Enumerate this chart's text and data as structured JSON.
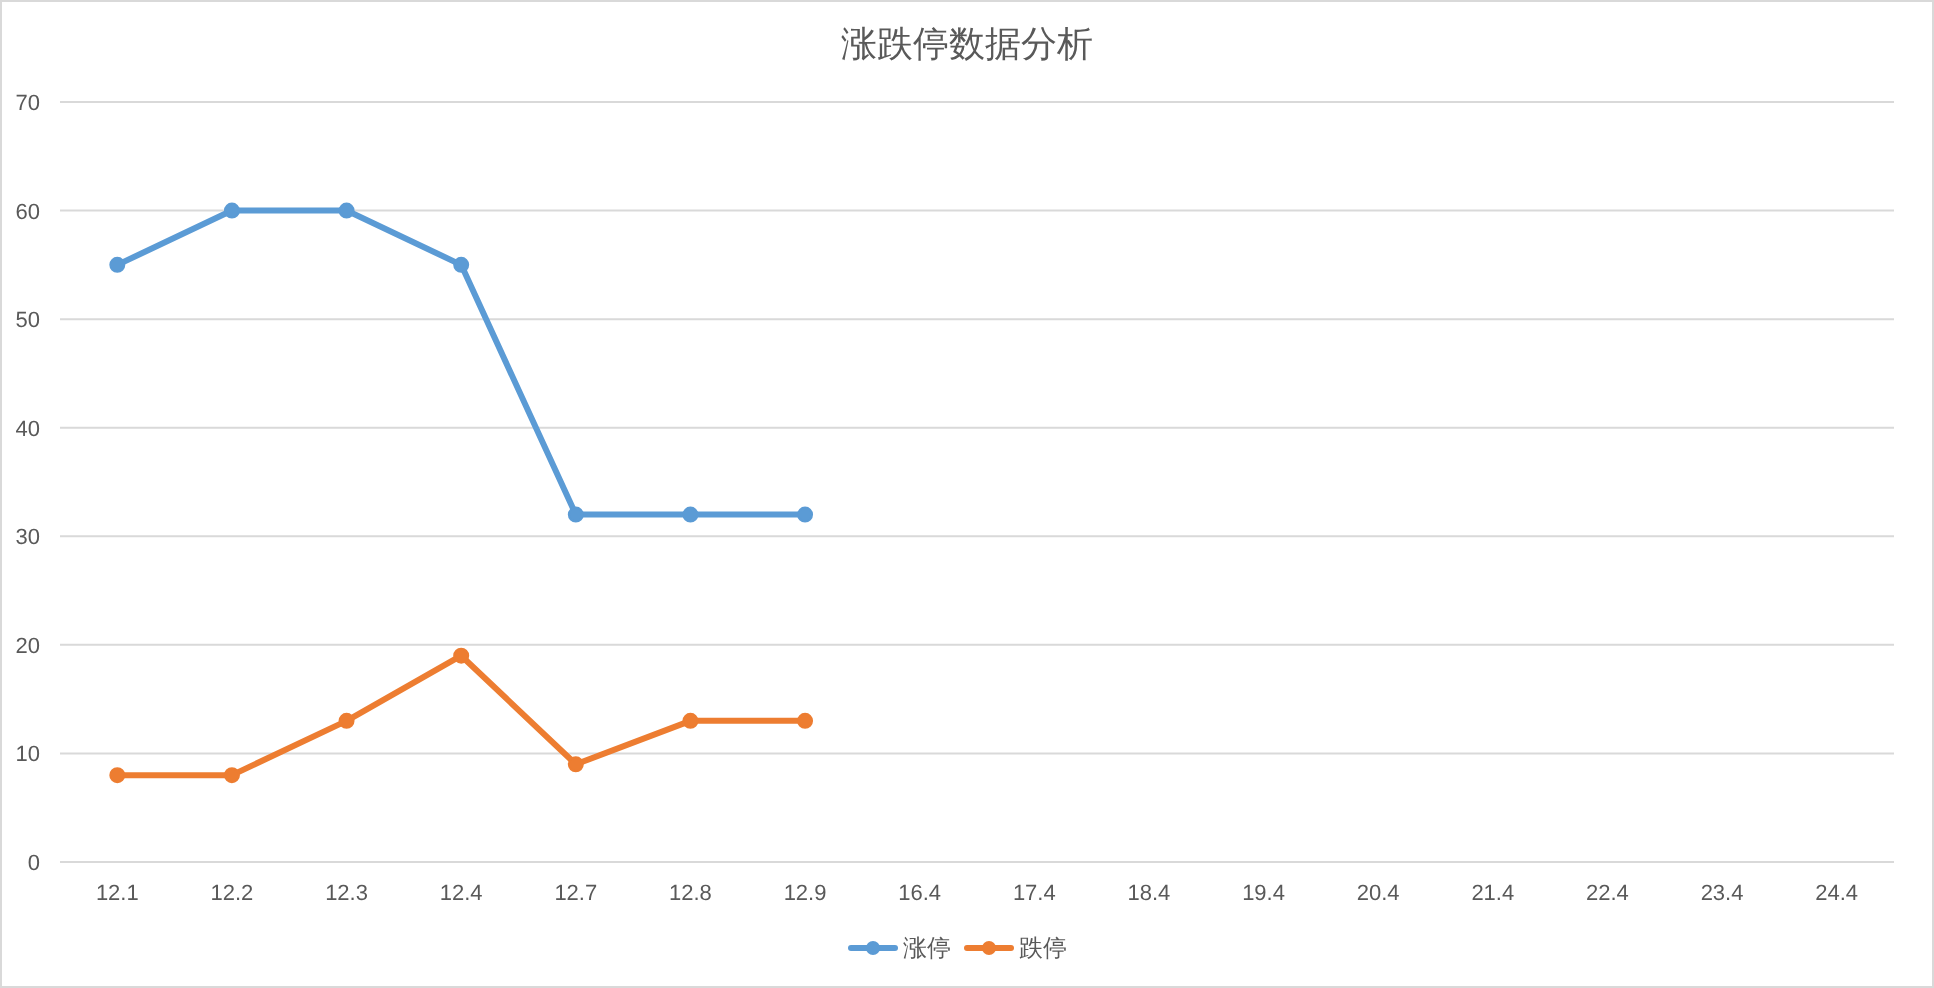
{
  "chart_data": {
    "type": "line",
    "title": "涨跌停数据分析",
    "categories": [
      "12.1",
      "12.2",
      "12.3",
      "12.4",
      "12.7",
      "12.8",
      "12.9",
      "16.4",
      "17.4",
      "18.4",
      "19.4",
      "20.4",
      "21.4",
      "22.4",
      "23.4",
      "24.4"
    ],
    "series": [
      {
        "name": "涨停",
        "color": "#5b9bd5",
        "values": [
          55,
          60,
          60,
          55,
          32,
          32,
          32,
          null,
          null,
          null,
          null,
          null,
          null,
          null,
          null,
          null
        ]
      },
      {
        "name": "跌停",
        "color": "#ed7d31",
        "values": [
          8,
          8,
          13,
          19,
          9,
          13,
          13,
          null,
          null,
          null,
          null,
          null,
          null,
          null,
          null,
          null
        ]
      }
    ],
    "ylim": [
      0,
      70
    ],
    "yticks": [
      0,
      10,
      20,
      30,
      40,
      50,
      60,
      70
    ],
    "grid": "y",
    "legend": "bottom",
    "marker": "circle",
    "line_style": "solid"
  }
}
